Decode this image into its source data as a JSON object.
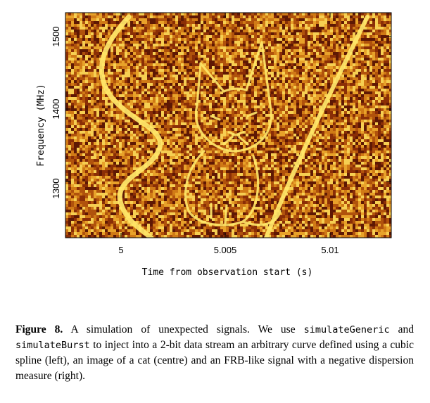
{
  "figure": {
    "ylabel": "Frequency (MHz)",
    "xlabel": "Time from observation start (s)",
    "y_ticks": [
      "1300",
      "1400",
      "1500"
    ],
    "x_ticks": [
      "5",
      "5.005",
      "5.01"
    ],
    "colors": {
      "background": "#6b1d05",
      "mid": "#c66a10",
      "bright": "#ffe86a",
      "frame": "#000000"
    }
  },
  "caption": {
    "label": "Figure 8.",
    "text_1": " A simulation of unexpected signals. We use ",
    "code_1": "simulateGeneric",
    "text_2": " and ",
    "code_2": "simulateBurst",
    "text_3": " to inject into a 2-bit data stream an arbitrary curve defined using a cubic spline (left), an image of a cat (centre) and an FRB-like signal with a negative dispersion measure (right)."
  }
}
